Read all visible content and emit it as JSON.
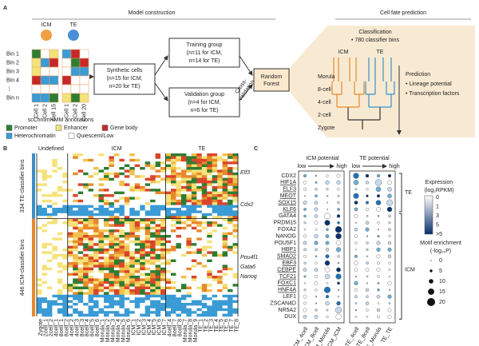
{
  "panel_a": {
    "label": "A",
    "title_left": "Model construction",
    "title_right": "Cell fate prediction",
    "icm": "ICM",
    "te": "TE",
    "bins": [
      "Bin 1",
      "Bin 2",
      "Bin 3",
      "Bin 4",
      "⋮",
      "Bin n"
    ],
    "cells": [
      "Cell 1",
      "Cell 2",
      "Cell 15",
      "Cell 1",
      "Cell 2",
      "Cell 20"
    ],
    "annotation_title": "scChromHMM annotations",
    "legend": [
      {
        "name": "Promoter",
        "color": "#2e7d32"
      },
      {
        "name": "Enhancer",
        "color": "#f2e27a"
      },
      {
        "name": "Gene body",
        "color": "#c62828"
      },
      {
        "name": "Heterochromatin",
        "color": "#3a9bd5"
      },
      {
        "name": "Quiescent/Low",
        "color": "#ffffff"
      }
    ],
    "synthetic": [
      "Synthetic cells",
      "(n=15 for ICM,",
      "n=20 for TE)"
    ],
    "training": [
      "Training group",
      "(n=11 for ICM,",
      "n=14 for TE)"
    ],
    "validation": [
      "Validation group",
      "(n=4 for ICM,",
      "n=6 for TE)"
    ],
    "cross": [
      "Cross-",
      "validation"
    ],
    "forest": [
      "Random",
      "Forest"
    ],
    "classification": [
      "Classification",
      "• 780 classifier bins"
    ],
    "tree_icm": "ICM",
    "tree_te": "TE",
    "stages": [
      "Morula",
      "8-cell",
      "4-cell",
      "2-cell",
      "Zygote"
    ],
    "prediction": [
      "Prediction",
      "• Lineage potential",
      "• Transcription factors"
    ]
  },
  "panel_b": {
    "label": "B",
    "groups": [
      "Undefined",
      "ICM",
      "TE"
    ],
    "group_colors": [
      "#222222",
      "#e8892b",
      "#3a8fc7"
    ],
    "row_labels": [
      "334 TE-classifier bins",
      "446 ICM-classifier bins"
    ],
    "genes": [
      "Elf3",
      "Cdx2",
      "Pou4f1",
      "Gata6",
      "Nanog"
    ],
    "columns_undefined": [
      "Zygote",
      "2cell_1",
      "2cell_2",
      "4cell_1",
      "8cell_1",
      "8cell_2"
    ],
    "columns_icm": [
      "4cell_2",
      "4cell_3",
      "8cell_3",
      "8cell_4",
      "8cell_5",
      "8cell_6",
      "Morula_1",
      "Morula_2",
      "Morula_3",
      "Morula_4",
      "Morula_5",
      "Morula_6",
      "ICM_1",
      "ICM_2",
      "ICM_3",
      "ICM_4",
      "ICM_5",
      "ICM_6",
      "ICM_7"
    ],
    "columns_te": [
      "4cell_4",
      "8cell_7",
      "8cell_8",
      "Morula_7",
      "Morula_8",
      "Morula_9",
      "TE_1",
      "TE_2",
      "TE_3",
      "TE_4",
      "TE_5",
      "TE_6",
      "TE_7",
      "TE_8"
    ]
  },
  "panel_c": {
    "label": "C",
    "icm_potential": "ICM potential",
    "te_potential": "TE potential",
    "low": "low",
    "high": "high",
    "genes": [
      "CDX2",
      "HIF1A",
      "ELF3",
      "MEOT",
      "SOX15",
      "KLF6",
      "GATA4",
      "PRDM15",
      "FOXA2",
      "NANOG",
      "POU5F1",
      "HBP1",
      "SMAD2",
      "EBF3",
      "CEBPE",
      "TCF21",
      "FOXC1",
      "HNF4A",
      "LEF1",
      "ZSCAN4D",
      "NR5A2",
      "DUX"
    ],
    "gene_colors": [
      "#222222",
      "#2b7bba",
      "#2b7bba",
      "#2b7bba",
      "#2b7bba",
      "#2b7bba",
      "#222222",
      "#222222",
      "#222222",
      "#222222",
      "#222222",
      "#e8892b",
      "#e8892b",
      "#e8892b",
      "#e8892b",
      "#e8892b",
      "#e8892b",
      "#e8892b",
      "#222222",
      "#222222",
      "#222222",
      "#222222"
    ],
    "columns": [
      "ICM_4cell",
      "ICM_8cell",
      "ICM_Morula",
      "ICM_ICM",
      "TE_4cell",
      "TE_8cell",
      "TE_Morula",
      "TE_TE"
    ],
    "groups": [
      "TE",
      "ICM"
    ],
    "expression_title": [
      "Expression",
      "(log₂RPKM)"
    ],
    "expression_ticks": [
      "0",
      "1",
      "3",
      "5",
      ">5"
    ],
    "motif_title": [
      "Motif enrichment",
      "(-log₁₀P)"
    ],
    "motif_ticks": [
      "0",
      "5",
      "10",
      "15",
      "20"
    ]
  }
}
